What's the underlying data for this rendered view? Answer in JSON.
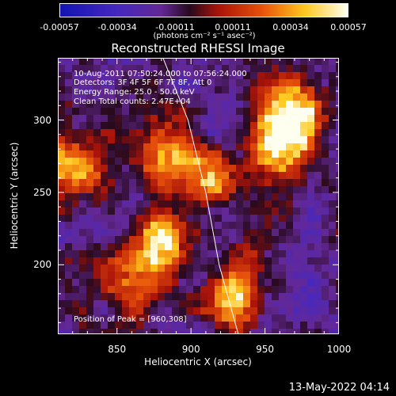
{
  "colorbar": {
    "ticks": [
      "-0.00057",
      "-0.00034",
      "-0.00011",
      "0.00011",
      "0.00034",
      "0.00057"
    ],
    "unit_label": "(photons cm⁻² s⁻¹ asec⁻²)"
  },
  "chart_data": {
    "type": "heatmap",
    "title": "Reconstructed RHESSI Image",
    "xlabel": "Heliocentric X (arcsec)",
    "ylabel": "Heliocentric Y (arcsec)",
    "xlim": [
      810,
      1000
    ],
    "ylim": [
      152,
      343
    ],
    "x_ticks": [
      "850",
      "900",
      "950",
      "1000"
    ],
    "y_ticks": [
      "200",
      "250",
      "300"
    ],
    "color_range": [
      -0.00057,
      0.00057
    ],
    "colormap": "blue-purple-red-yellow-white",
    "limb_line": [
      [
        881,
        343
      ],
      [
        898,
        300
      ],
      [
        910,
        250
      ],
      [
        919,
        200
      ],
      [
        932,
        152
      ]
    ],
    "bright_regions": [
      {
        "x": 970,
        "y": 305,
        "level": 1.0
      },
      {
        "x": 960,
        "y": 280,
        "level": 0.8
      },
      {
        "x": 822,
        "y": 268,
        "level": 0.7
      },
      {
        "x": 880,
        "y": 215,
        "level": 0.75
      },
      {
        "x": 880,
        "y": 275,
        "level": 0.5
      },
      {
        "x": 912,
        "y": 262,
        "level": 0.55
      },
      {
        "x": 928,
        "y": 175,
        "level": 0.6
      },
      {
        "x": 860,
        "y": 185,
        "level": 0.45
      },
      {
        "x": 940,
        "y": 205,
        "level": 0.35
      }
    ],
    "annotations": [
      "10-Aug-2011 07:50:24.000 to 07:56:24.000",
      "Detectors: 3F 4F 5F 6F 7F 8F, Att 0",
      "Energy Range: 25.0 - 50.0 keV",
      "Clean     Total counts: 2.47E+04",
      "Position of Peak = [960,308]"
    ]
  },
  "footer": {
    "timestamp": "13-May-2022 04:14"
  }
}
